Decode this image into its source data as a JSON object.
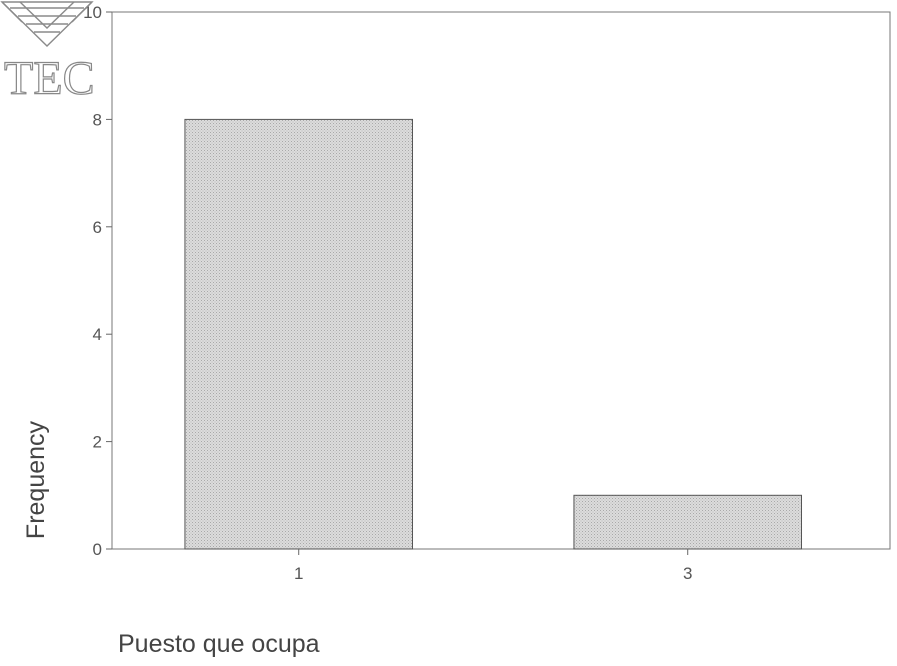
{
  "logo": {
    "text": "TEC",
    "icon": "tec-logo-icon"
  },
  "chart_data": {
    "type": "bar",
    "categories": [
      "1",
      "3"
    ],
    "values": [
      8,
      1
    ],
    "title": "",
    "xlabel": "Puesto que ocupa",
    "ylabel": "Frequency",
    "ylim": [
      0,
      10
    ],
    "yticks": [
      0,
      2,
      4,
      6,
      8,
      10
    ],
    "ytick_labels": [
      "0",
      "2",
      "4",
      "6",
      "8",
      "10"
    ],
    "grid": false,
    "legend": "none",
    "bar_color": "#d2d2d2",
    "bar_edge_color": "#555555"
  }
}
